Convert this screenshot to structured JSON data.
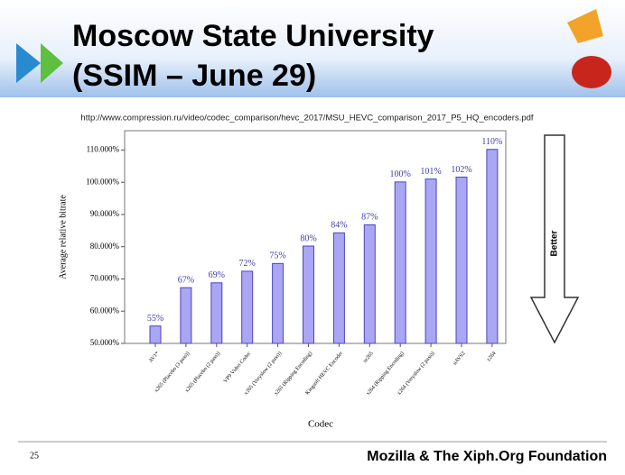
{
  "slide": {
    "title_lines": [
      "Moscow State University",
      "(SSIM – June 29)"
    ],
    "url": "http://www.compression.ru/video/codec_comparison/hevc_2017/MSU_HEVC_comparison_2017_P5_HQ_encoders.pdf",
    "arrow_label": "Better",
    "page_number": "25",
    "footer": "Mozilla & The Xiph.Org Foundation"
  },
  "chart_data": {
    "type": "bar",
    "categories": [
      "AV1*",
      "x265 (Placebo (3 pass))",
      "x265 (Placebo (2 pass))",
      "VP9 Video Codec",
      "x265 (Veryslow (2 pass))",
      "x265 (Ripping Encoding)",
      "Kingsoft HEVC Encoder",
      "sz265",
      "x264 (Ripping Encoding)",
      "x264 (Veryslow (2 pass))",
      "uAVS2",
      "x264"
    ],
    "values": [
      55.4,
      67.3,
      68.8,
      72.4,
      74.8,
      80.2,
      84.3,
      86.8,
      100.1,
      101.0,
      101.6,
      110.2
    ],
    "value_labels": [
      "55%",
      "67%",
      "69%",
      "72%",
      "75%",
      "80%",
      "84%",
      "87%",
      "100%",
      "101%",
      "102%",
      "110%"
    ],
    "color": "#aaa6f4",
    "x_label": "Codec",
    "y_label": "Average relative bitrate",
    "ylim": [
      50,
      116
    ],
    "yticks": [
      {
        "value": 50,
        "label": "50.000%"
      },
      {
        "value": 60,
        "label": "60.000%"
      },
      {
        "value": 70,
        "label": "70.000%"
      },
      {
        "value": 80,
        "label": "80.000%"
      },
      {
        "value": 90,
        "label": "90.000%"
      },
      {
        "value": 100,
        "label": "100.000%"
      },
      {
        "value": 110,
        "label": "110.000%"
      }
    ],
    "grid": false
  }
}
